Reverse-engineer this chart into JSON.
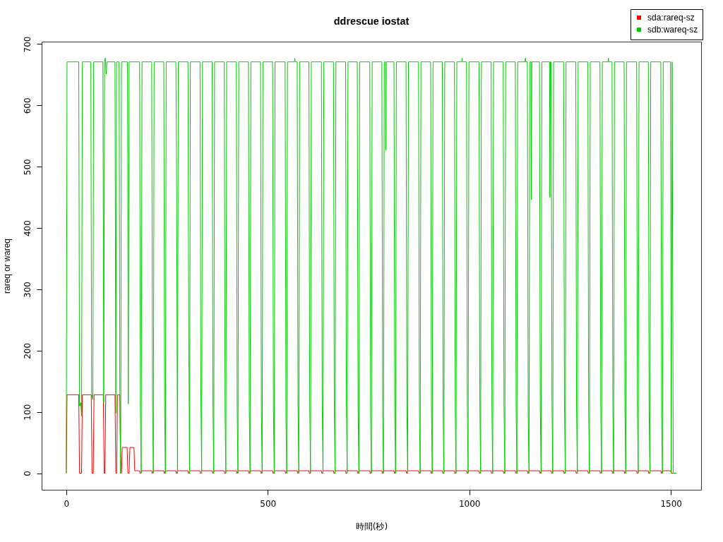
{
  "chart_data": {
    "type": "line",
    "title": "ddrescue iostat",
    "xlabel": "時間(秒)",
    "ylabel": "rareq or wareq",
    "xlim": [
      -61,
      1575
    ],
    "ylim": [
      -27,
      704
    ],
    "xticks": [
      0,
      500,
      1000,
      1500
    ],
    "yticks": [
      0,
      100,
      200,
      300,
      400,
      500,
      600,
      700
    ],
    "legend": "top right",
    "marker": "none",
    "line_style": "solid",
    "series": [
      {
        "name": "sda:rareq-sz",
        "color": "#ff0000",
        "x": [
          0,
          2,
          31,
          33,
          38,
          40,
          62,
          64,
          67,
          69,
          92,
          94,
          96,
          98,
          121,
          123,
          125,
          127,
          133,
          135,
          137,
          139,
          151,
          153,
          156,
          158,
          168,
          170,
          182,
          183,
          185,
          186,
          212,
          213,
          215,
          216,
          242,
          243,
          245,
          246,
          272,
          273,
          275,
          276,
          302,
          303,
          305,
          306,
          332,
          333,
          335,
          336,
          362,
          363,
          365,
          366,
          392,
          393,
          395,
          396,
          422,
          423,
          425,
          426,
          452,
          453,
          455,
          456,
          482,
          483,
          485,
          486,
          512,
          513,
          515,
          516,
          543,
          544,
          546,
          547,
          573,
          574,
          576,
          577,
          602,
          603,
          605,
          606,
          633,
          634,
          636,
          637,
          663,
          664,
          666,
          667,
          693,
          694,
          696,
          697,
          722,
          723,
          725,
          726,
          753,
          754,
          756,
          757,
          783,
          784,
          786,
          787,
          813,
          814,
          816,
          817,
          843,
          844,
          846,
          847,
          874,
          875,
          877,
          878,
          904,
          905,
          907,
          908,
          933,
          934,
          936,
          937,
          963,
          964,
          966,
          967,
          993,
          994,
          996,
          997,
          1024,
          1025,
          1027,
          1028,
          1054,
          1055,
          1057,
          1058,
          1084,
          1085,
          1087,
          1088,
          1114,
          1115,
          1117,
          1118,
          1144,
          1145,
          1147,
          1148,
          1174,
          1175,
          1177,
          1178,
          1203,
          1204,
          1206,
          1207,
          1234,
          1235,
          1237,
          1238,
          1264,
          1265,
          1267,
          1268,
          1294,
          1295,
          1297,
          1298,
          1324,
          1325,
          1327,
          1328,
          1354,
          1355,
          1357,
          1358,
          1384,
          1385,
          1387,
          1388,
          1415,
          1416,
          1418,
          1419,
          1444,
          1445,
          1447,
          1448,
          1475,
          1476,
          1478,
          1479,
          1499,
          1501,
          1514
        ],
        "values": [
          0,
          128,
          128,
          0,
          0,
          128,
          128,
          0,
          0,
          128,
          128,
          0,
          0,
          128,
          128,
          0,
          0,
          128,
          128,
          0,
          0,
          42,
          42,
          0,
          0,
          42,
          42,
          4,
          4,
          0,
          0,
          4,
          4,
          0,
          0,
          4,
          4,
          0,
          0,
          4,
          4,
          0,
          0,
          4,
          4,
          0,
          0,
          4,
          4,
          0,
          0,
          4,
          4,
          0,
          0,
          4,
          4,
          0,
          0,
          4,
          4,
          0,
          0,
          4,
          4,
          0,
          0,
          4,
          4,
          0,
          0,
          4,
          4,
          0,
          0,
          4,
          4,
          0,
          0,
          4,
          4,
          0,
          0,
          4,
          4,
          0,
          0,
          4,
          4,
          0,
          0,
          4,
          4,
          0,
          0,
          4,
          4,
          0,
          0,
          4,
          4,
          0,
          0,
          4,
          4,
          0,
          0,
          4,
          4,
          0,
          0,
          4,
          4,
          0,
          0,
          4,
          4,
          0,
          0,
          4,
          4,
          0,
          0,
          4,
          4,
          0,
          0,
          4,
          4,
          0,
          0,
          4,
          4,
          0,
          0,
          4,
          4,
          0,
          0,
          4,
          4,
          0,
          0,
          4,
          4,
          0,
          0,
          4,
          4,
          0,
          0,
          4,
          4,
          0,
          0,
          4,
          4,
          0,
          0,
          4,
          4,
          0,
          0,
          4,
          4,
          0,
          0,
          4,
          4,
          0,
          0,
          4,
          4,
          0,
          0,
          4,
          4,
          0,
          0,
          4,
          4,
          0,
          0,
          4,
          4,
          0,
          0,
          4,
          4,
          0,
          0,
          4,
          4,
          0,
          0,
          4,
          4,
          0,
          0,
          4,
          4,
          0,
          0,
          4,
          4,
          0,
          0
        ]
      },
      {
        "name": "sdb:wareq-sz",
        "color": "#00cd00",
        "x": [
          0,
          2,
          31,
          33,
          36,
          38,
          40,
          61,
          63,
          66,
          68,
          91,
          93,
          95,
          97,
          99,
          101,
          121,
          123,
          125,
          131,
          133,
          135,
          137,
          152,
          154,
          156,
          182,
          184,
          186,
          188,
          212,
          214,
          216,
          218,
          242,
          244,
          246,
          248,
          272,
          274,
          276,
          278,
          302,
          304,
          306,
          308,
          332,
          334,
          336,
          338,
          362,
          364,
          366,
          368,
          392,
          394,
          396,
          398,
          422,
          424,
          426,
          428,
          452,
          454,
          456,
          458,
          482,
          484,
          486,
          488,
          512,
          514,
          516,
          518,
          543,
          545,
          547,
          549,
          566,
          567,
          568,
          573,
          575,
          577,
          579,
          602,
          604,
          606,
          608,
          633,
          635,
          637,
          639,
          663,
          665,
          667,
          669,
          693,
          695,
          697,
          699,
          722,
          724,
          726,
          728,
          753,
          755,
          757,
          759,
          783,
          785,
          787,
          789,
          792,
          793,
          794,
          813,
          815,
          817,
          819,
          843,
          845,
          847,
          849,
          874,
          876,
          878,
          880,
          904,
          906,
          908,
          910,
          933,
          935,
          937,
          939,
          963,
          965,
          967,
          969,
          981,
          982,
          983,
          993,
          995,
          997,
          999,
          1024,
          1026,
          1028,
          1030,
          1054,
          1056,
          1058,
          1060,
          1084,
          1086,
          1088,
          1090,
          1114,
          1116,
          1118,
          1120,
          1138,
          1139,
          1140,
          1144,
          1146,
          1148,
          1150,
          1153,
          1154,
          1155,
          1174,
          1176,
          1178,
          1180,
          1199,
          1200,
          1201,
          1203,
          1205,
          1207,
          1209,
          1234,
          1236,
          1238,
          1240,
          1264,
          1266,
          1268,
          1270,
          1294,
          1296,
          1298,
          1300,
          1324,
          1326,
          1328,
          1330,
          1344,
          1345,
          1346,
          1354,
          1356,
          1358,
          1360,
          1384,
          1386,
          1388,
          1390,
          1415,
          1417,
          1419,
          1421,
          1444,
          1446,
          1448,
          1450,
          1475,
          1477,
          1479,
          1481,
          1499,
          1501,
          1503,
          1506,
          1514
        ],
        "values": [
          0,
          671,
          671,
          110,
          115,
          93,
          671,
          671,
          130,
          120,
          671,
          671,
          115,
          671,
          677,
          651,
          671,
          671,
          98,
          671,
          671,
          120,
          0,
          671,
          671,
          113,
          671,
          671,
          104,
          0,
          671,
          671,
          120,
          0,
          671,
          671,
          111,
          0,
          671,
          671,
          450,
          0,
          671,
          671,
          215,
          0,
          671,
          671,
          125,
          0,
          671,
          671,
          106,
          0,
          671,
          671,
          105,
          0,
          671,
          671,
          110,
          0,
          671,
          671,
          110,
          0,
          671,
          671,
          103,
          0,
          671,
          671,
          105,
          0,
          671,
          671,
          100,
          0,
          671,
          671,
          677,
          671,
          671,
          110,
          0,
          671,
          671,
          115,
          0,
          671,
          671,
          110,
          0,
          671,
          671,
          103,
          0,
          671,
          671,
          117,
          0,
          671,
          671,
          103,
          0,
          671,
          671,
          105,
          0,
          671,
          671,
          100,
          0,
          671,
          671,
          527,
          671,
          671,
          103,
          0,
          671,
          671,
          110,
          0,
          671,
          671,
          115,
          0,
          671,
          671,
          110,
          0,
          671,
          671,
          100,
          0,
          671,
          671,
          105,
          0,
          671,
          671,
          677,
          671,
          671,
          107,
          0,
          671,
          671,
          122,
          0,
          671,
          671,
          105,
          0,
          671,
          671,
          110,
          0,
          671,
          671,
          110,
          0,
          671,
          671,
          677,
          671,
          671,
          98,
          0,
          671,
          671,
          446,
          671,
          671,
          107,
          0,
          671,
          671,
          450,
          671,
          671,
          117,
          0,
          671,
          671,
          112,
          0,
          671,
          671,
          103,
          0,
          671,
          671,
          100,
          0,
          671,
          671,
          107,
          0,
          671,
          671,
          677,
          671,
          671,
          110,
          0,
          671,
          671,
          107,
          0,
          671,
          671,
          110,
          0,
          671,
          671,
          100,
          0,
          671,
          671,
          95,
          0,
          671,
          671,
          0,
          671,
          0,
          0
        ]
      }
    ]
  }
}
